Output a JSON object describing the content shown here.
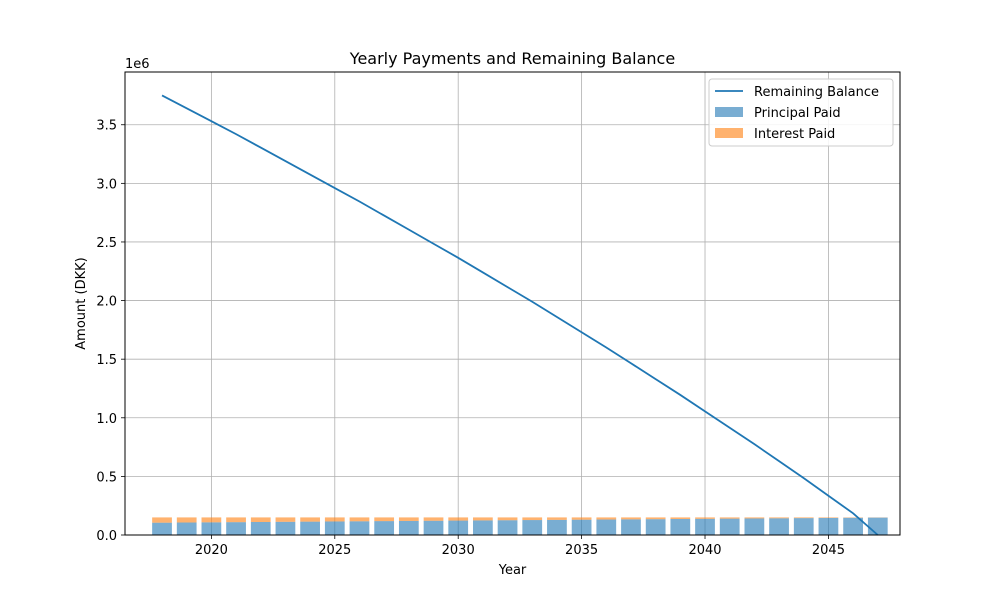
{
  "chart_data": {
    "type": "bar",
    "title": "Yearly Payments and Remaining Balance",
    "xlabel": "Year",
    "ylabel": "Amount (DKK)",
    "y_offset_label": "1e6",
    "xlim": [
      2016.5,
      2047.9
    ],
    "ylim": [
      0,
      3950000
    ],
    "grid": true,
    "legend_position": "top-right",
    "x_ticks": [
      2020,
      2025,
      2030,
      2035,
      2040,
      2045
    ],
    "x_tick_labels": [
      "2020",
      "2025",
      "2030",
      "2035",
      "2040",
      "2045"
    ],
    "y_ticks": [
      0,
      500000,
      1000000,
      1500000,
      2000000,
      2500000,
      3000000,
      3500000
    ],
    "y_tick_labels": [
      "0.0",
      "0.5",
      "1.0",
      "1.5",
      "2.0",
      "2.5",
      "3.0",
      "3.5"
    ],
    "x": [
      2018,
      2019,
      2020,
      2021,
      2022,
      2023,
      2024,
      2025,
      2026,
      2027,
      2028,
      2029,
      2030,
      2031,
      2032,
      2033,
      2034,
      2035,
      2036,
      2037,
      2038,
      2039,
      2040,
      2041,
      2042,
      2043,
      2044,
      2045,
      2046,
      2047
    ],
    "series": [
      {
        "name": "Principal Paid",
        "kind": "bar",
        "color": "#1f77b4",
        "values": [
          105000,
          106500,
          108000,
          109500,
          111000,
          112500,
          114000,
          115500,
          117000,
          118500,
          120000,
          121500,
          123000,
          124500,
          126000,
          127500,
          129000,
          130500,
          132000,
          133500,
          135000,
          136500,
          138000,
          139500,
          141000,
          142500,
          144000,
          145500,
          147000,
          148500
        ]
      },
      {
        "name": "Interest Paid",
        "kind": "bar",
        "color": "#ff7f0e",
        "values": [
          45000,
          43500,
          42000,
          40500,
          39000,
          37500,
          36000,
          34500,
          33000,
          31500,
          30000,
          28500,
          27000,
          25500,
          24000,
          22500,
          21000,
          19500,
          18000,
          16500,
          15000,
          13500,
          12000,
          10500,
          9000,
          7500,
          6000,
          4500,
          3000,
          1500
        ]
      },
      {
        "name": "Remaining Balance",
        "kind": "line",
        "color": "#1f77b4",
        "values": [
          3750000,
          3640000,
          3530000,
          3420000,
          3305000,
          3190000,
          3075000,
          2960000,
          2845000,
          2725000,
          2605000,
          2485000,
          2365000,
          2240000,
          2115000,
          1990000,
          1860000,
          1730000,
          1600000,
          1465000,
          1330000,
          1195000,
          1055000,
          915000,
          775000,
          630000,
          485000,
          335000,
          185000,
          0
        ]
      }
    ]
  }
}
